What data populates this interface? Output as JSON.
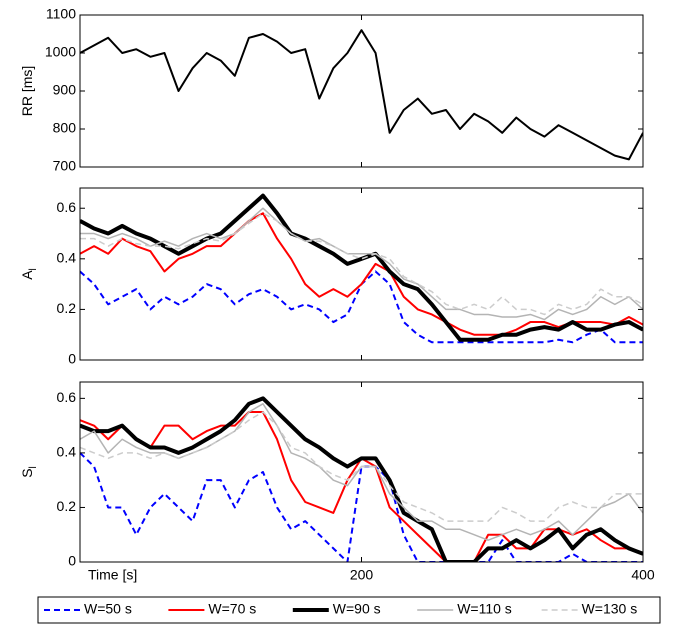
{
  "chart_data": [
    {
      "type": "line",
      "ylabel": "RR [ms]",
      "x": [
        0,
        10,
        20,
        30,
        40,
        50,
        60,
        70,
        80,
        90,
        100,
        110,
        120,
        130,
        140,
        150,
        160,
        170,
        180,
        190,
        200,
        210,
        220,
        230,
        240,
        250,
        260,
        270,
        280,
        290,
        300,
        310,
        320,
        330,
        340,
        350,
        360,
        370,
        380,
        390,
        400
      ],
      "series": [
        {
          "color": "#000000",
          "linewidth": 2,
          "linestyle": "solid",
          "values": [
            1000,
            1020,
            1040,
            1000,
            1010,
            990,
            1000,
            900,
            960,
            1000,
            980,
            940,
            1040,
            1050,
            1030,
            1000,
            1010,
            880,
            960,
            1000,
            1060,
            1000,
            790,
            850,
            880,
            840,
            850,
            800,
            840,
            820,
            790,
            830,
            800,
            780,
            810,
            790,
            770,
            750,
            730,
            720,
            790
          ]
        }
      ],
      "xlim": [
        0,
        400
      ],
      "xticks": [
        200,
        400
      ],
      "ylim": [
        700,
        1100
      ],
      "yticks": [
        700,
        800,
        900,
        1000,
        1100
      ]
    },
    {
      "type": "line",
      "ylabel": "A",
      "ylabel_subscript": "l",
      "x": [
        0,
        10,
        20,
        30,
        40,
        50,
        60,
        70,
        80,
        90,
        100,
        110,
        120,
        130,
        140,
        150,
        160,
        170,
        180,
        190,
        200,
        210,
        220,
        230,
        240,
        250,
        260,
        270,
        280,
        290,
        300,
        310,
        320,
        330,
        340,
        350,
        360,
        370,
        380,
        390,
        400
      ],
      "series": [
        {
          "name": "W=50 s",
          "color": "#0000ff",
          "linewidth": 2,
          "linestyle": "dashed",
          "values": [
            0.35,
            0.3,
            0.22,
            0.25,
            0.28,
            0.2,
            0.25,
            0.22,
            0.25,
            0.3,
            0.28,
            0.22,
            0.26,
            0.28,
            0.25,
            0.2,
            0.22,
            0.2,
            0.15,
            0.18,
            0.3,
            0.35,
            0.3,
            0.15,
            0.1,
            0.07,
            0.07,
            0.07,
            0.07,
            0.07,
            0.07,
            0.07,
            0.07,
            0.07,
            0.08,
            0.07,
            0.1,
            0.12,
            0.07,
            0.07,
            0.07
          ]
        },
        {
          "name": "W=70 s",
          "color": "#ff0000",
          "linewidth": 2,
          "linestyle": "solid",
          "values": [
            0.42,
            0.45,
            0.42,
            0.48,
            0.45,
            0.43,
            0.35,
            0.4,
            0.42,
            0.45,
            0.45,
            0.5,
            0.55,
            0.58,
            0.48,
            0.4,
            0.3,
            0.25,
            0.28,
            0.25,
            0.3,
            0.38,
            0.35,
            0.25,
            0.2,
            0.18,
            0.15,
            0.12,
            0.1,
            0.1,
            0.1,
            0.12,
            0.15,
            0.15,
            0.13,
            0.15,
            0.15,
            0.15,
            0.14,
            0.17,
            0.14
          ]
        },
        {
          "name": "W=90 s",
          "color": "#000000",
          "linewidth": 4,
          "linestyle": "solid",
          "values": [
            0.55,
            0.52,
            0.5,
            0.53,
            0.5,
            0.48,
            0.45,
            0.42,
            0.45,
            0.48,
            0.5,
            0.55,
            0.6,
            0.65,
            0.58,
            0.5,
            0.48,
            0.45,
            0.42,
            0.38,
            0.4,
            0.42,
            0.35,
            0.3,
            0.28,
            0.22,
            0.15,
            0.08,
            0.08,
            0.08,
            0.1,
            0.1,
            0.12,
            0.13,
            0.12,
            0.15,
            0.12,
            0.12,
            0.14,
            0.15,
            0.12
          ]
        },
        {
          "name": "W=110 s",
          "color": "#b4b4b4",
          "linewidth": 1.5,
          "linestyle": "solid",
          "values": [
            0.5,
            0.5,
            0.48,
            0.5,
            0.48,
            0.45,
            0.47,
            0.45,
            0.48,
            0.5,
            0.48,
            0.5,
            0.55,
            0.6,
            0.55,
            0.5,
            0.47,
            0.48,
            0.45,
            0.42,
            0.42,
            0.42,
            0.38,
            0.32,
            0.3,
            0.25,
            0.2,
            0.2,
            0.18,
            0.18,
            0.17,
            0.17,
            0.18,
            0.16,
            0.2,
            0.18,
            0.2,
            0.25,
            0.22,
            0.25,
            0.2
          ]
        },
        {
          "name": "W=130 s",
          "color": "#cccccc",
          "linewidth": 1.5,
          "linestyle": "dashed",
          "values": [
            0.48,
            0.48,
            0.45,
            0.48,
            0.46,
            0.45,
            0.45,
            0.44,
            0.46,
            0.48,
            0.47,
            0.5,
            0.54,
            0.58,
            0.55,
            0.5,
            0.47,
            0.47,
            0.45,
            0.42,
            0.4,
            0.42,
            0.4,
            0.33,
            0.3,
            0.27,
            0.22,
            0.2,
            0.22,
            0.2,
            0.25,
            0.2,
            0.2,
            0.18,
            0.22,
            0.2,
            0.22,
            0.28,
            0.25,
            0.25,
            0.22
          ]
        }
      ],
      "xlim": [
        0,
        400
      ],
      "xticks": [
        200,
        400
      ],
      "ylim": [
        0,
        0.68
      ],
      "yticks": [
        0,
        0.2,
        0.4,
        0.6
      ]
    },
    {
      "type": "line",
      "ylabel": "S",
      "ylabel_subscript": "l",
      "xlabel": "Time [s]",
      "x": [
        0,
        10,
        20,
        30,
        40,
        50,
        60,
        70,
        80,
        90,
        100,
        110,
        120,
        130,
        140,
        150,
        160,
        170,
        180,
        190,
        200,
        210,
        220,
        230,
        240,
        250,
        260,
        270,
        280,
        290,
        300,
        310,
        320,
        330,
        340,
        350,
        360,
        370,
        380,
        390,
        400
      ],
      "series": [
        {
          "color": "#0000ff",
          "linewidth": 2,
          "linestyle": "dashed",
          "values": [
            0.4,
            0.35,
            0.2,
            0.2,
            0.1,
            0.2,
            0.25,
            0.2,
            0.15,
            0.3,
            0.3,
            0.2,
            0.3,
            0.33,
            0.2,
            0.12,
            0.15,
            0.1,
            0.05,
            0,
            0.35,
            0.35,
            0.3,
            0.1,
            0,
            0,
            0,
            0,
            0,
            0,
            0.08,
            0,
            0,
            0,
            0,
            0.03,
            0,
            0,
            0,
            0,
            0
          ]
        },
        {
          "color": "#ff0000",
          "linewidth": 2,
          "linestyle": "solid",
          "values": [
            0.52,
            0.5,
            0.45,
            0.5,
            0.45,
            0.42,
            0.5,
            0.5,
            0.45,
            0.48,
            0.5,
            0.5,
            0.55,
            0.55,
            0.45,
            0.3,
            0.22,
            0.2,
            0.18,
            0.3,
            0.38,
            0.35,
            0.2,
            0.15,
            0.1,
            0.05,
            0,
            0,
            0,
            0.1,
            0.1,
            0.05,
            0.05,
            0.12,
            0.12,
            0.1,
            0.12,
            0.08,
            0.05,
            0.05,
            0.03
          ]
        },
        {
          "color": "#000000",
          "linewidth": 4,
          "linestyle": "solid",
          "values": [
            0.5,
            0.48,
            0.48,
            0.5,
            0.45,
            0.42,
            0.42,
            0.4,
            0.42,
            0.45,
            0.48,
            0.52,
            0.58,
            0.6,
            0.55,
            0.5,
            0.45,
            0.42,
            0.38,
            0.35,
            0.38,
            0.38,
            0.3,
            0.18,
            0.15,
            0.12,
            0,
            0,
            0,
            0.05,
            0.05,
            0.08,
            0.05,
            0.08,
            0.12,
            0.05,
            0.1,
            0.12,
            0.08,
            0.05,
            0.03
          ]
        },
        {
          "color": "#b4b4b4",
          "linewidth": 1.5,
          "linestyle": "solid",
          "values": [
            0.45,
            0.48,
            0.4,
            0.45,
            0.42,
            0.4,
            0.4,
            0.38,
            0.4,
            0.42,
            0.45,
            0.48,
            0.55,
            0.58,
            0.5,
            0.4,
            0.38,
            0.35,
            0.3,
            0.28,
            0.35,
            0.35,
            0.25,
            0.2,
            0.15,
            0.15,
            0.12,
            0.12,
            0.1,
            0.08,
            0.1,
            0.12,
            0.1,
            0.12,
            0.15,
            0.1,
            0.15,
            0.2,
            0.22,
            0.25,
            0.18
          ]
        },
        {
          "color": "#cccccc",
          "linewidth": 1.5,
          "linestyle": "dashed",
          "values": [
            0.42,
            0.4,
            0.38,
            0.4,
            0.4,
            0.38,
            0.4,
            0.38,
            0.4,
            0.42,
            0.45,
            0.48,
            0.52,
            0.55,
            0.5,
            0.42,
            0.4,
            0.35,
            0.32,
            0.3,
            0.35,
            0.35,
            0.28,
            0.22,
            0.2,
            0.18,
            0.15,
            0.15,
            0.15,
            0.15,
            0.2,
            0.18,
            0.15,
            0.15,
            0.2,
            0.22,
            0.2,
            0.2,
            0.25,
            0.25,
            0.25
          ]
        }
      ],
      "xlim": [
        0,
        400
      ],
      "xticks": [
        200,
        400
      ],
      "ylim": [
        0,
        0.66
      ],
      "yticks": [
        0,
        0.2,
        0.4,
        0.6
      ]
    }
  ]
}
